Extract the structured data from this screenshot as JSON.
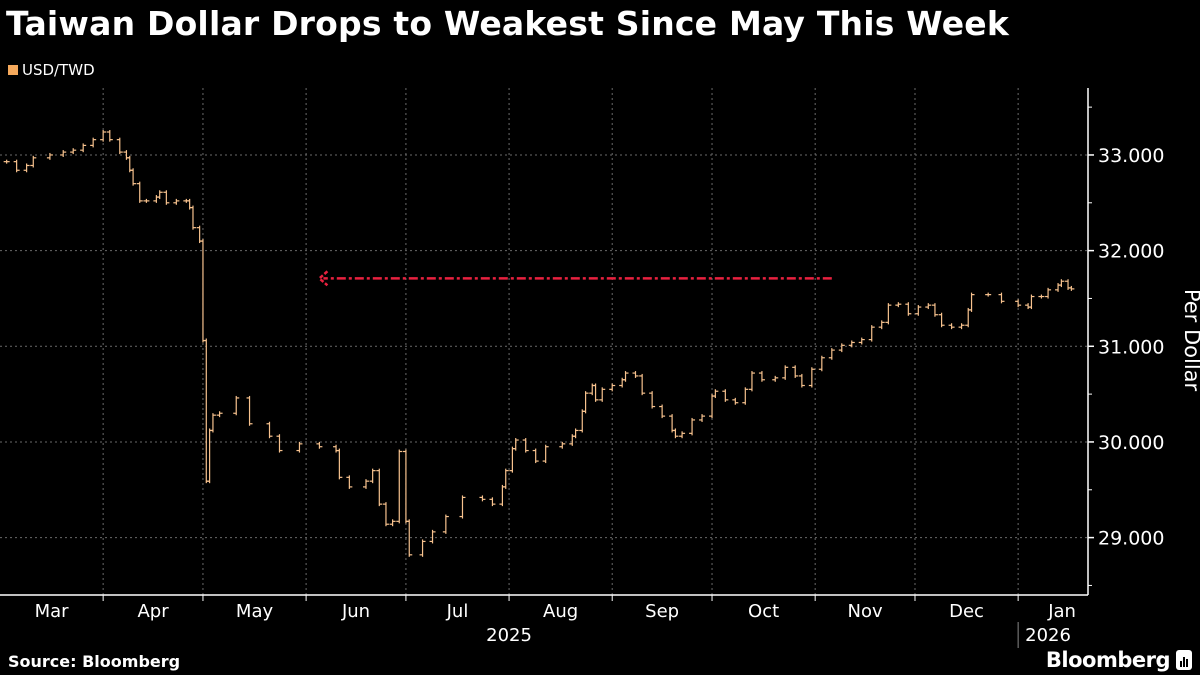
{
  "title": "Taiwan Dollar Drops to Weakest Since May This Week",
  "legend": {
    "label": "USD/TWD",
    "color": "#f5a95c"
  },
  "source": "Source: Bloomberg",
  "logo": "Bloomberg",
  "chart_data": {
    "type": "line",
    "style": "ohlc-bars",
    "series": [
      {
        "name": "USD/TWD",
        "color": "#f7c28e",
        "points": [
          [
            "2025-03-03",
            32.93
          ],
          [
            "2025-03-06",
            32.84
          ],
          [
            "2025-03-09",
            32.89
          ],
          [
            "2025-03-11",
            32.97
          ],
          [
            "2025-03-16",
            33.0
          ],
          [
            "2025-03-20",
            33.03
          ],
          [
            "2025-03-23",
            33.05
          ],
          [
            "2025-03-26",
            33.1
          ],
          [
            "2025-03-29",
            33.16
          ],
          [
            "2025-04-01",
            33.24
          ],
          [
            "2025-04-03",
            33.16
          ],
          [
            "2025-04-06",
            33.03
          ],
          [
            "2025-04-08",
            32.97
          ],
          [
            "2025-04-09",
            32.84
          ],
          [
            "2025-04-10",
            32.7
          ],
          [
            "2025-04-12",
            32.52
          ],
          [
            "2025-04-14",
            32.52
          ],
          [
            "2025-04-17",
            32.56
          ],
          [
            "2025-04-18",
            32.61
          ],
          [
            "2025-04-20",
            32.5
          ],
          [
            "2025-04-23",
            32.52
          ],
          [
            "2025-04-26",
            32.52
          ],
          [
            "2025-04-27",
            32.45
          ],
          [
            "2025-04-28",
            32.24
          ],
          [
            "2025-04-30",
            32.1
          ],
          [
            "2025-05-01",
            31.06
          ],
          [
            "2025-05-02",
            29.59
          ],
          [
            "2025-05-03",
            30.12
          ],
          [
            "2025-05-04",
            30.28
          ],
          [
            "2025-05-06",
            30.3
          ],
          [
            "2025-05-11",
            30.46
          ],
          [
            "2025-05-15",
            30.19
          ],
          [
            "2025-05-21",
            30.06
          ],
          [
            "2025-05-24",
            29.91
          ],
          [
            "2025-05-30",
            29.98
          ],
          [
            "2025-06-05",
            29.95
          ],
          [
            "2025-06-10",
            29.91
          ],
          [
            "2025-06-11",
            29.63
          ],
          [
            "2025-06-14",
            29.53
          ],
          [
            "2025-06-19",
            29.59
          ],
          [
            "2025-06-21",
            29.7
          ],
          [
            "2025-06-23",
            29.35
          ],
          [
            "2025-06-25",
            29.14
          ],
          [
            "2025-06-27",
            29.17
          ],
          [
            "2025-06-29",
            29.9
          ],
          [
            "2025-07-01",
            29.17
          ],
          [
            "2025-07-02",
            28.82
          ],
          [
            "2025-07-06",
            28.96
          ],
          [
            "2025-07-09",
            29.06
          ],
          [
            "2025-07-13",
            29.22
          ],
          [
            "2025-07-18",
            29.42
          ],
          [
            "2025-07-24",
            29.4
          ],
          [
            "2025-07-27",
            29.35
          ],
          [
            "2025-07-30",
            29.53
          ],
          [
            "2025-07-31",
            29.7
          ],
          [
            "2025-08-02",
            29.93
          ],
          [
            "2025-08-03",
            30.02
          ],
          [
            "2025-08-06",
            29.91
          ],
          [
            "2025-08-09",
            29.8
          ],
          [
            "2025-08-12",
            29.95
          ],
          [
            "2025-08-17",
            29.98
          ],
          [
            "2025-08-20",
            30.06
          ],
          [
            "2025-08-21",
            30.12
          ],
          [
            "2025-08-23",
            30.32
          ],
          [
            "2025-08-24",
            30.51
          ],
          [
            "2025-08-26",
            30.59
          ],
          [
            "2025-08-27",
            30.44
          ],
          [
            "2025-08-29",
            30.55
          ],
          [
            "2025-09-01",
            30.59
          ],
          [
            "2025-09-04",
            30.65
          ],
          [
            "2025-09-05",
            30.72
          ],
          [
            "2025-09-08",
            30.69
          ],
          [
            "2025-09-10",
            30.51
          ],
          [
            "2025-09-13",
            30.37
          ],
          [
            "2025-09-16",
            30.27
          ],
          [
            "2025-09-19",
            30.12
          ],
          [
            "2025-09-20",
            30.06
          ],
          [
            "2025-09-22",
            30.09
          ],
          [
            "2025-09-25",
            30.23
          ],
          [
            "2025-09-28",
            30.27
          ],
          [
            "2025-10-01",
            30.48
          ],
          [
            "2025-10-02",
            30.53
          ],
          [
            "2025-10-05",
            30.44
          ],
          [
            "2025-10-08",
            30.41
          ],
          [
            "2025-10-11",
            30.55
          ],
          [
            "2025-10-13",
            30.72
          ],
          [
            "2025-10-16",
            30.65
          ],
          [
            "2025-10-20",
            30.67
          ],
          [
            "2025-10-23",
            30.78
          ],
          [
            "2025-10-26",
            30.69
          ],
          [
            "2025-10-28",
            30.59
          ],
          [
            "2025-10-31",
            30.76
          ],
          [
            "2025-11-03",
            30.88
          ],
          [
            "2025-11-06",
            30.96
          ],
          [
            "2025-11-09",
            31.01
          ],
          [
            "2025-11-12",
            31.04
          ],
          [
            "2025-11-15",
            31.07
          ],
          [
            "2025-11-18",
            31.2
          ],
          [
            "2025-11-21",
            31.25
          ],
          [
            "2025-11-23",
            31.43
          ],
          [
            "2025-11-26",
            31.44
          ],
          [
            "2025-11-29",
            31.34
          ],
          [
            "2025-12-02",
            31.41
          ],
          [
            "2025-12-05",
            31.43
          ],
          [
            "2025-12-07",
            31.33
          ],
          [
            "2025-12-09",
            31.22
          ],
          [
            "2025-12-12",
            31.2
          ],
          [
            "2025-12-15",
            31.22
          ],
          [
            "2025-12-17",
            31.38
          ],
          [
            "2025-12-18",
            31.54
          ],
          [
            "2025-12-23",
            31.54
          ],
          [
            "2025-12-27",
            31.47
          ],
          [
            "2026-01-01",
            31.43
          ],
          [
            "2026-01-04",
            31.41
          ],
          [
            "2026-01-05",
            31.52
          ],
          [
            "2026-01-08",
            31.52
          ],
          [
            "2026-01-10",
            31.59
          ],
          [
            "2026-01-13",
            31.64
          ],
          [
            "2026-01-14",
            31.68
          ],
          [
            "2026-01-16",
            31.61
          ],
          [
            "2026-01-17",
            31.6
          ]
        ]
      }
    ],
    "ylabel": "Per Dollar",
    "ylim": [
      28.4,
      33.7
    ],
    "yticks": [
      29,
      30,
      31,
      32,
      33
    ],
    "ytick_labels": [
      "29.000",
      "30.000",
      "31.000",
      "32.000",
      "33.000"
    ],
    "xlim": [
      "2025-03-01",
      "2026-01-22"
    ],
    "months": [
      {
        "label": "Mar",
        "start": "2025-03-01"
      },
      {
        "label": "Apr",
        "start": "2025-04-01"
      },
      {
        "label": "May",
        "start": "2025-05-01"
      },
      {
        "label": "Jun",
        "start": "2025-06-01"
      },
      {
        "label": "Jul",
        "start": "2025-07-01"
      },
      {
        "label": "Aug",
        "start": "2025-08-01"
      },
      {
        "label": "Sep",
        "start": "2025-09-01"
      },
      {
        "label": "Oct",
        "start": "2025-10-01"
      },
      {
        "label": "Nov",
        "start": "2025-11-01"
      },
      {
        "label": "Dec",
        "start": "2025-12-01"
      },
      {
        "label": "Jan",
        "start": "2026-01-01"
      }
    ],
    "years": [
      {
        "label": "2025",
        "center": "2025-08-01"
      },
      {
        "label": "2026",
        "center": "2026-01-10"
      }
    ],
    "grid": true,
    "annotation": {
      "type": "arrow",
      "style": "dash-dot",
      "color": "#e8213f",
      "y": 31.71,
      "from": "2025-11-06",
      "to": "2025-06-05"
    }
  }
}
